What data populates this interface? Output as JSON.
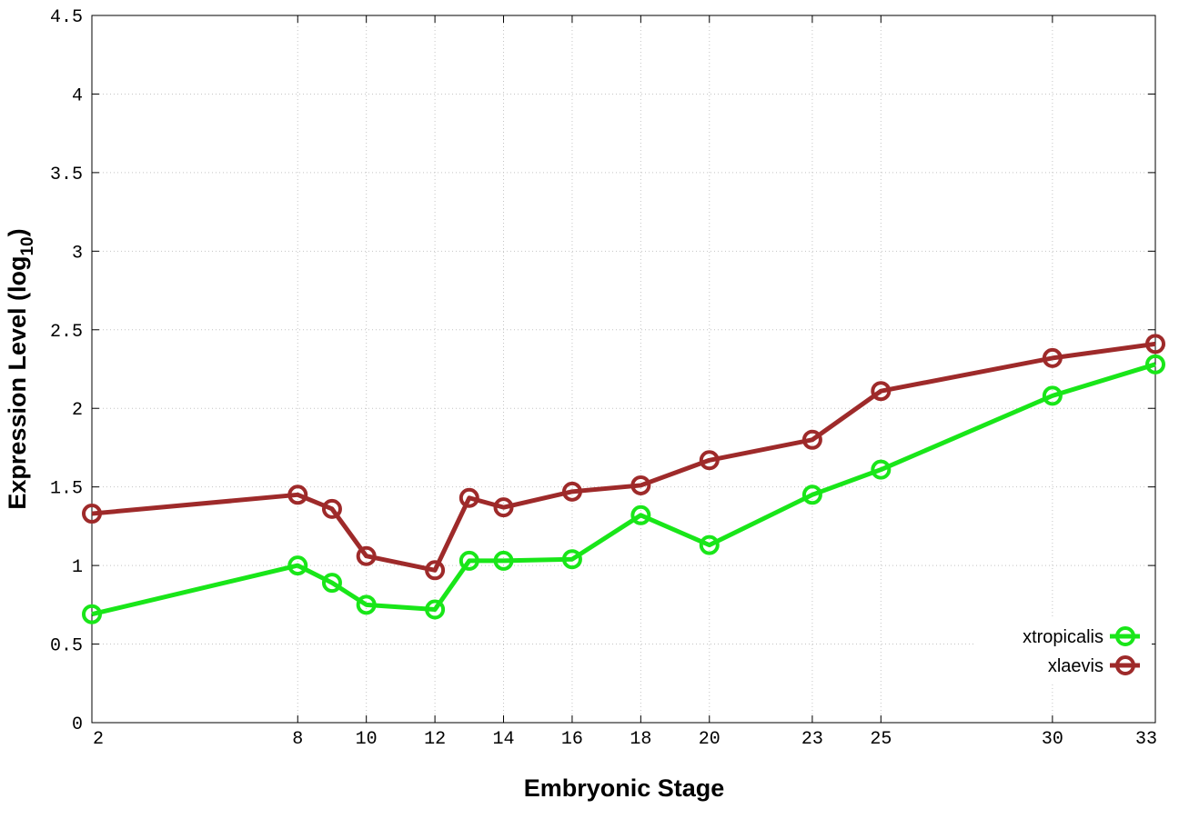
{
  "chart_data": {
    "type": "line",
    "title": "",
    "xlabel": "Embryonic Stage",
    "ylabel_main": "Expression Level (log",
    "ylabel_sub": "10",
    "ylabel_close": ")",
    "x": [
      2,
      8,
      9,
      10,
      12,
      13,
      14,
      16,
      18,
      20,
      23,
      25,
      30,
      33
    ],
    "xticks": [
      2,
      8,
      10,
      12,
      14,
      16,
      18,
      20,
      23,
      25,
      30,
      33
    ],
    "xtick_labels": [
      "2",
      "8",
      "10",
      "12",
      "14",
      "16",
      "18",
      "20",
      "23",
      "25",
      "30",
      "33"
    ],
    "yticks": [
      0,
      0.5,
      1,
      1.5,
      2,
      2.5,
      3,
      3.5,
      4,
      4.5
    ],
    "ytick_labels": [
      "0",
      "0.5",
      "1",
      "1.5",
      "2",
      "2.5",
      "3",
      "3.5",
      "4",
      "4.5"
    ],
    "xlim": [
      2,
      33
    ],
    "ylim": [
      0,
      4.5
    ],
    "grid": true,
    "legend_position": "bottom-right",
    "series": [
      {
        "name": "xtropicalis",
        "color": "#19e619",
        "values": [
          0.69,
          1.0,
          0.89,
          0.75,
          0.72,
          1.03,
          1.03,
          1.04,
          1.32,
          1.13,
          1.45,
          1.61,
          2.08,
          2.28
        ]
      },
      {
        "name": "xlaevis",
        "color": "#9e2a2a",
        "values": [
          1.33,
          1.45,
          1.36,
          1.06,
          0.97,
          1.43,
          1.37,
          1.47,
          1.51,
          1.67,
          1.8,
          2.11,
          2.32,
          2.41
        ]
      }
    ]
  }
}
